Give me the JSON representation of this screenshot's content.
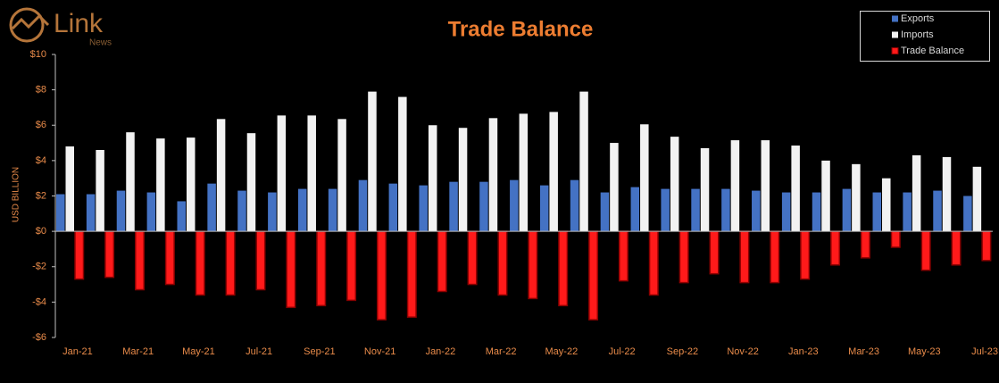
{
  "brand": "Link",
  "brand_sub": "News",
  "chart_data": {
    "type": "bar",
    "title": "Trade Balance",
    "y_label": "USD BILLION",
    "categories": [
      "Jan-21",
      null,
      "Mar-21",
      null,
      "May-21",
      null,
      "Jul-21",
      null,
      "Sep-21",
      null,
      "Nov-21",
      null,
      "Jan-22",
      null,
      "Mar-22",
      null,
      "May-22",
      null,
      "Jul-22",
      null,
      "Sep-22",
      null,
      "Nov-22",
      null,
      "Jan-23",
      null,
      "Mar-23",
      null,
      "May-23",
      null,
      "Jul-23"
    ],
    "series": [
      {
        "name": "Exports",
        "color": "#4472c4",
        "values": [
          2.1,
          2.1,
          2.3,
          2.2,
          1.7,
          2.7,
          2.3,
          2.2,
          2.4,
          2.4,
          2.9,
          2.7,
          2.6,
          2.8,
          2.8,
          2.9,
          2.6,
          2.9,
          2.2,
          2.5,
          2.4,
          2.4,
          2.4,
          2.3,
          2.2,
          2.2,
          2.4,
          2.2,
          2.2,
          2.3,
          2.0
        ]
      },
      {
        "name": "Imports",
        "color": "#f2f2f2",
        "values": [
          4.8,
          4.6,
          5.6,
          5.25,
          5.3,
          6.35,
          5.55,
          6.55,
          6.55,
          6.35,
          7.9,
          7.6,
          6.0,
          5.85,
          6.4,
          6.65,
          6.75,
          7.9,
          5.0,
          6.05,
          5.35,
          4.7,
          5.15,
          5.15,
          4.85,
          4.0,
          3.8,
          3.0,
          4.3,
          4.2,
          3.65
        ]
      },
      {
        "name": "Trade Balance",
        "color": "#ff1a1a",
        "values": [
          -2.7,
          -2.6,
          -3.3,
          -3.0,
          -3.6,
          -3.6,
          -3.3,
          -4.3,
          -4.2,
          -3.9,
          -5.0,
          -4.85,
          -3.4,
          -3.0,
          -3.6,
          -3.8,
          -4.2,
          -5.0,
          -2.8,
          -3.6,
          -2.9,
          -2.4,
          -2.9,
          -2.9,
          -2.7,
          -1.9,
          -1.5,
          -0.9,
          -2.2,
          -1.9,
          -1.65
        ]
      }
    ],
    "ylim": [
      -6,
      10
    ],
    "yticks": [
      {
        "value": 10,
        "label": "$10"
      },
      {
        "value": 8,
        "label": "$8"
      },
      {
        "value": 6,
        "label": "$6"
      },
      {
        "value": 4,
        "label": "$4"
      },
      {
        "value": 2,
        "label": "$2"
      },
      {
        "value": 0,
        "label": "$0"
      },
      {
        "value": -2,
        "label": "-$2"
      },
      {
        "value": -4,
        "label": "-$4"
      },
      {
        "value": -6,
        "label": "-$6"
      }
    ],
    "legend": "top-right"
  }
}
